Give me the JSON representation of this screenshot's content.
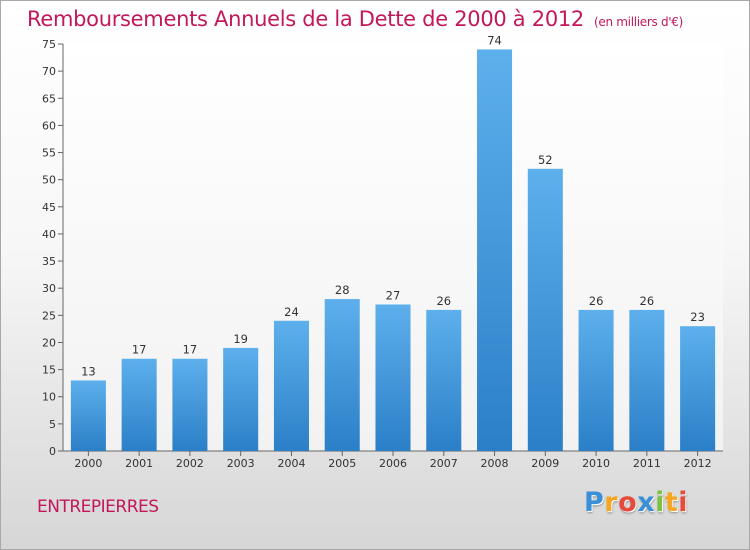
{
  "header": {
    "title": "Remboursements Annuels de la Dette de 2000 à 2012",
    "unit": "(en milliers d'€)"
  },
  "footer": {
    "commune": "ENTREPIERRES",
    "logo": {
      "letters": [
        "P",
        "r",
        "o",
        "x",
        "i",
        "t",
        "i"
      ],
      "colors": [
        "#3a8fd8",
        "#f5a623",
        "#e64a3c",
        "#3a8fd8",
        "#7cc242",
        "#f5a623",
        "#e64a3c"
      ]
    }
  },
  "chart_data": {
    "type": "bar",
    "categories": [
      "2000",
      "2001",
      "2002",
      "2003",
      "2004",
      "2005",
      "2006",
      "2007",
      "2008",
      "2009",
      "2010",
      "2011",
      "2012"
    ],
    "values": [
      13,
      17,
      17,
      19,
      24,
      28,
      27,
      26,
      74,
      52,
      26,
      26,
      23
    ],
    "title": "Remboursements Annuels de la Dette de 2000 à 2012",
    "xlabel": "",
    "ylabel": "",
    "ylim": [
      0,
      75
    ],
    "yticks": [
      0,
      5,
      10,
      15,
      20,
      25,
      30,
      35,
      40,
      45,
      50,
      55,
      60,
      65,
      70,
      75
    ],
    "grid": false,
    "bar_color": "#3f97de",
    "show_value_labels": true
  }
}
